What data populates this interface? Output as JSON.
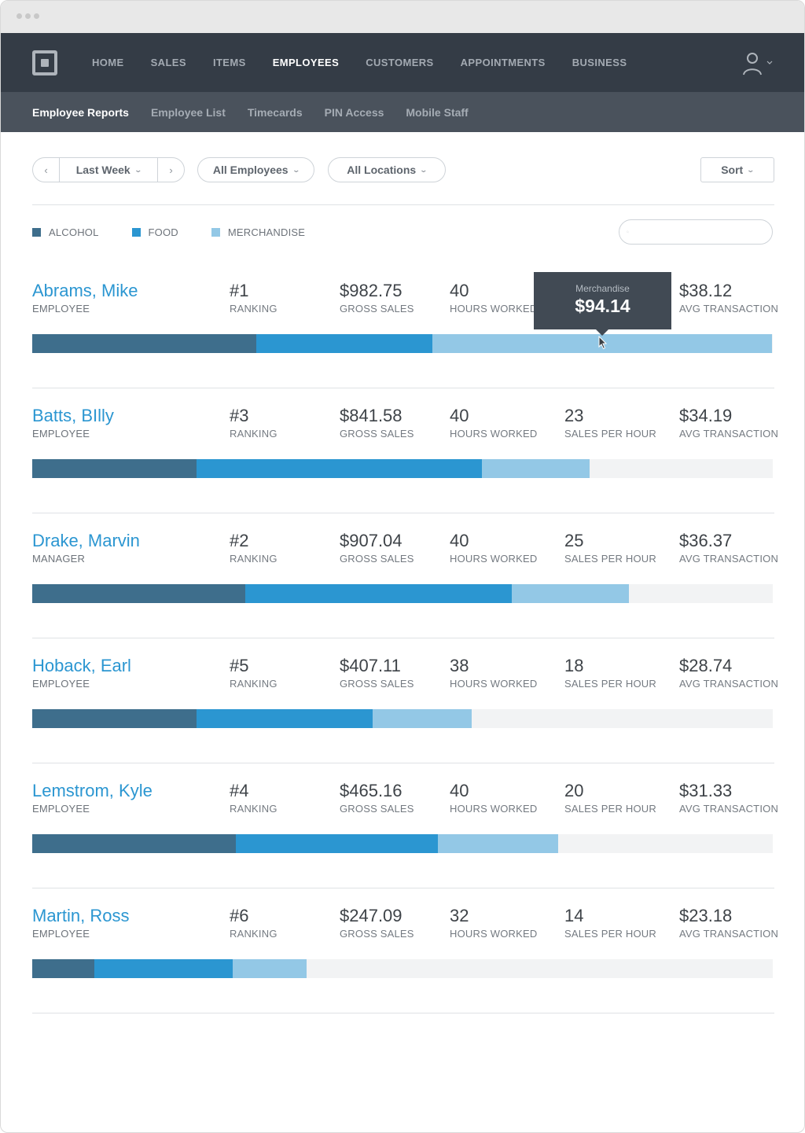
{
  "nav": {
    "items": [
      "HOME",
      "SALES",
      "ITEMS",
      "EMPLOYEES",
      "CUSTOMERS",
      "APPOINTMENTS",
      "BUSINESS"
    ],
    "active": "EMPLOYEES"
  },
  "subnav": {
    "items": [
      "Employee Reports",
      "Employee List",
      "Timecards",
      "PIN Access",
      "Mobile Staff"
    ],
    "active": "Employee Reports"
  },
  "filters": {
    "date_range": "Last Week",
    "employees": "All Employees",
    "locations": "All Locations",
    "sort": "Sort"
  },
  "legend": [
    {
      "label": "ALCOHOL",
      "color": "#3e6e8c"
    },
    {
      "label": "FOOD",
      "color": "#2b96d1"
    },
    {
      "label": "MERCHANDISE",
      "color": "#93c8e6"
    }
  ],
  "search": {
    "placeholder": ""
  },
  "stat_labels": {
    "ranking": "RANKING",
    "gross_sales": "GROSS SALES",
    "hours_worked": "HOURS WORKED",
    "sales_per_hour": "SALES PER HOUR",
    "avg_transaction": "AVG TRANSACTION"
  },
  "tooltip": {
    "label": "Merchandise",
    "value": "$94.14"
  },
  "employees": [
    {
      "name": "Abrams, Mike",
      "role": "EMPLOYEE",
      "ranking": "#1",
      "gross_sales": "$982.75",
      "hours_worked": "40",
      "sales_per_hour": "",
      "avg_transaction": "$38.12",
      "bar_fractions": [
        0.303,
        0.238,
        0.459
      ]
    },
    {
      "name": "Batts, BIlly",
      "role": "EMPLOYEE",
      "ranking": "#3",
      "gross_sales": "$841.58",
      "hours_worked": "40",
      "sales_per_hour": "23",
      "avg_transaction": "$34.19",
      "bar_fractions": [
        0.222,
        0.385,
        0.145
      ]
    },
    {
      "name": "Drake, Marvin",
      "role": "MANAGER",
      "ranking": "#2",
      "gross_sales": "$907.04",
      "hours_worked": "40",
      "sales_per_hour": "25",
      "avg_transaction": "$36.37",
      "bar_fractions": [
        0.288,
        0.36,
        0.158
      ]
    },
    {
      "name": "Hoback, Earl",
      "role": "EMPLOYEE",
      "ranking": "#5",
      "gross_sales": "$407.11",
      "hours_worked": "38",
      "sales_per_hour": "18",
      "avg_transaction": "$28.74",
      "bar_fractions": [
        0.222,
        0.238,
        0.134
      ]
    },
    {
      "name": "Lemstrom, Kyle",
      "role": "EMPLOYEE",
      "ranking": "#4",
      "gross_sales": "$465.16",
      "hours_worked": "40",
      "sales_per_hour": "20",
      "avg_transaction": "$31.33",
      "bar_fractions": [
        0.275,
        0.273,
        0.162
      ]
    },
    {
      "name": "Martin, Ross",
      "role": "EMPLOYEE",
      "ranking": "#6",
      "gross_sales": "$247.09",
      "hours_worked": "32",
      "sales_per_hour": "14",
      "avg_transaction": "$23.18",
      "bar_fractions": [
        0.084,
        0.187,
        0.1
      ]
    }
  ]
}
